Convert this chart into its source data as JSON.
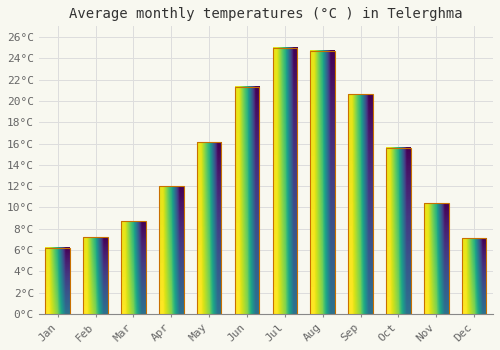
{
  "title": "Average monthly temperatures (°C ) in Telerghma",
  "months": [
    "Jan",
    "Feb",
    "Mar",
    "Apr",
    "May",
    "Jun",
    "Jul",
    "Aug",
    "Sep",
    "Oct",
    "Nov",
    "Dec"
  ],
  "values": [
    6.2,
    7.2,
    8.7,
    12.0,
    16.1,
    21.3,
    25.0,
    24.7,
    20.6,
    15.6,
    10.4,
    7.1
  ],
  "bar_color_top": "#F5A000",
  "bar_color_bottom": "#FFD060",
  "bar_edge_color": "#C87000",
  "yticks": [
    0,
    2,
    4,
    6,
    8,
    10,
    12,
    14,
    16,
    18,
    20,
    22,
    24,
    26
  ],
  "ylim": [
    0,
    27
  ],
  "background_color": "#F8F8F0",
  "grid_color": "#DDDDDD",
  "title_fontsize": 10,
  "tick_fontsize": 8,
  "font_family": "monospace"
}
